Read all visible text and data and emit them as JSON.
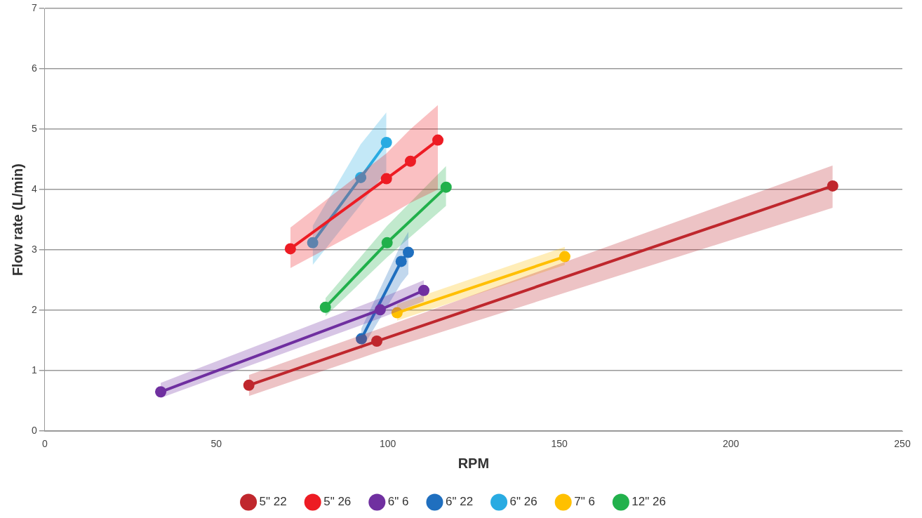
{
  "chart_data": {
    "type": "line",
    "xlabel": "RPM",
    "ylabel": "Flow rate (L/min)",
    "xlim": [
      0,
      250
    ],
    "xticks": [
      0,
      50,
      100,
      150,
      200,
      250
    ],
    "ylim": [
      0,
      7
    ],
    "yticks": [
      0,
      1,
      2,
      3,
      4,
      5,
      6,
      7
    ],
    "grid": "y",
    "legend": "bottom",
    "marker": "circle",
    "line_style": "solid",
    "series": [
      {
        "name": "5\" 22",
        "color": "#c0272d",
        "x": [
          59.5,
          96.8,
          229.7
        ],
        "values": [
          0.76,
          1.49,
          4.06
        ],
        "lower": [
          0.58,
          1.3,
          3.7
        ],
        "upper": [
          0.93,
          1.68,
          4.4
        ]
      },
      {
        "name": "5\" 26",
        "color": "#ed1c24",
        "x": [
          71.6,
          99.6,
          106.6,
          114.6
        ],
        "values": [
          3.02,
          4.18,
          4.47,
          4.82
        ],
        "lower": [
          2.7,
          3.55,
          3.78,
          4.0
        ],
        "upper": [
          3.37,
          4.6,
          5.0,
          5.4
        ]
      },
      {
        "name": "6\" 6",
        "color": "#7030a0",
        "x": [
          33.8,
          97.8,
          110.5
        ],
        "values": [
          0.65,
          2.01,
          2.33
        ],
        "lower": [
          0.55,
          1.87,
          2.15
        ],
        "upper": [
          0.8,
          2.2,
          2.5
        ]
      },
      {
        "name": "6\" 22",
        "color": "#1f6fbf",
        "x": [
          92.3,
          103.9,
          106
        ],
        "values": [
          1.53,
          2.81,
          2.96
        ],
        "lower": [
          1.35,
          2.45,
          2.6
        ],
        "upper": [
          1.7,
          3.1,
          3.3
        ]
      },
      {
        "name": "6\" 26",
        "color": "#29abe2",
        "x": [
          78.1,
          92.1,
          99.6
        ],
        "values": [
          3.12,
          4.2,
          4.78
        ],
        "lower": [
          2.75,
          3.75,
          4.3
        ],
        "upper": [
          3.4,
          4.75,
          5.28
        ]
      },
      {
        "name": "7\" 6",
        "color": "#ffc000",
        "x": [
          102.7,
          151.6
        ],
        "values": [
          1.96,
          2.89
        ],
        "lower": [
          1.83,
          2.75
        ],
        "upper": [
          2.1,
          3.05
        ]
      },
      {
        "name": "12\" 26",
        "color": "#22b14c",
        "x": [
          81.8,
          99.8,
          117
        ],
        "values": [
          2.05,
          3.12,
          4.04
        ],
        "lower": [
          1.9,
          2.88,
          3.73
        ],
        "upper": [
          2.2,
          3.4,
          4.39
        ]
      }
    ]
  }
}
